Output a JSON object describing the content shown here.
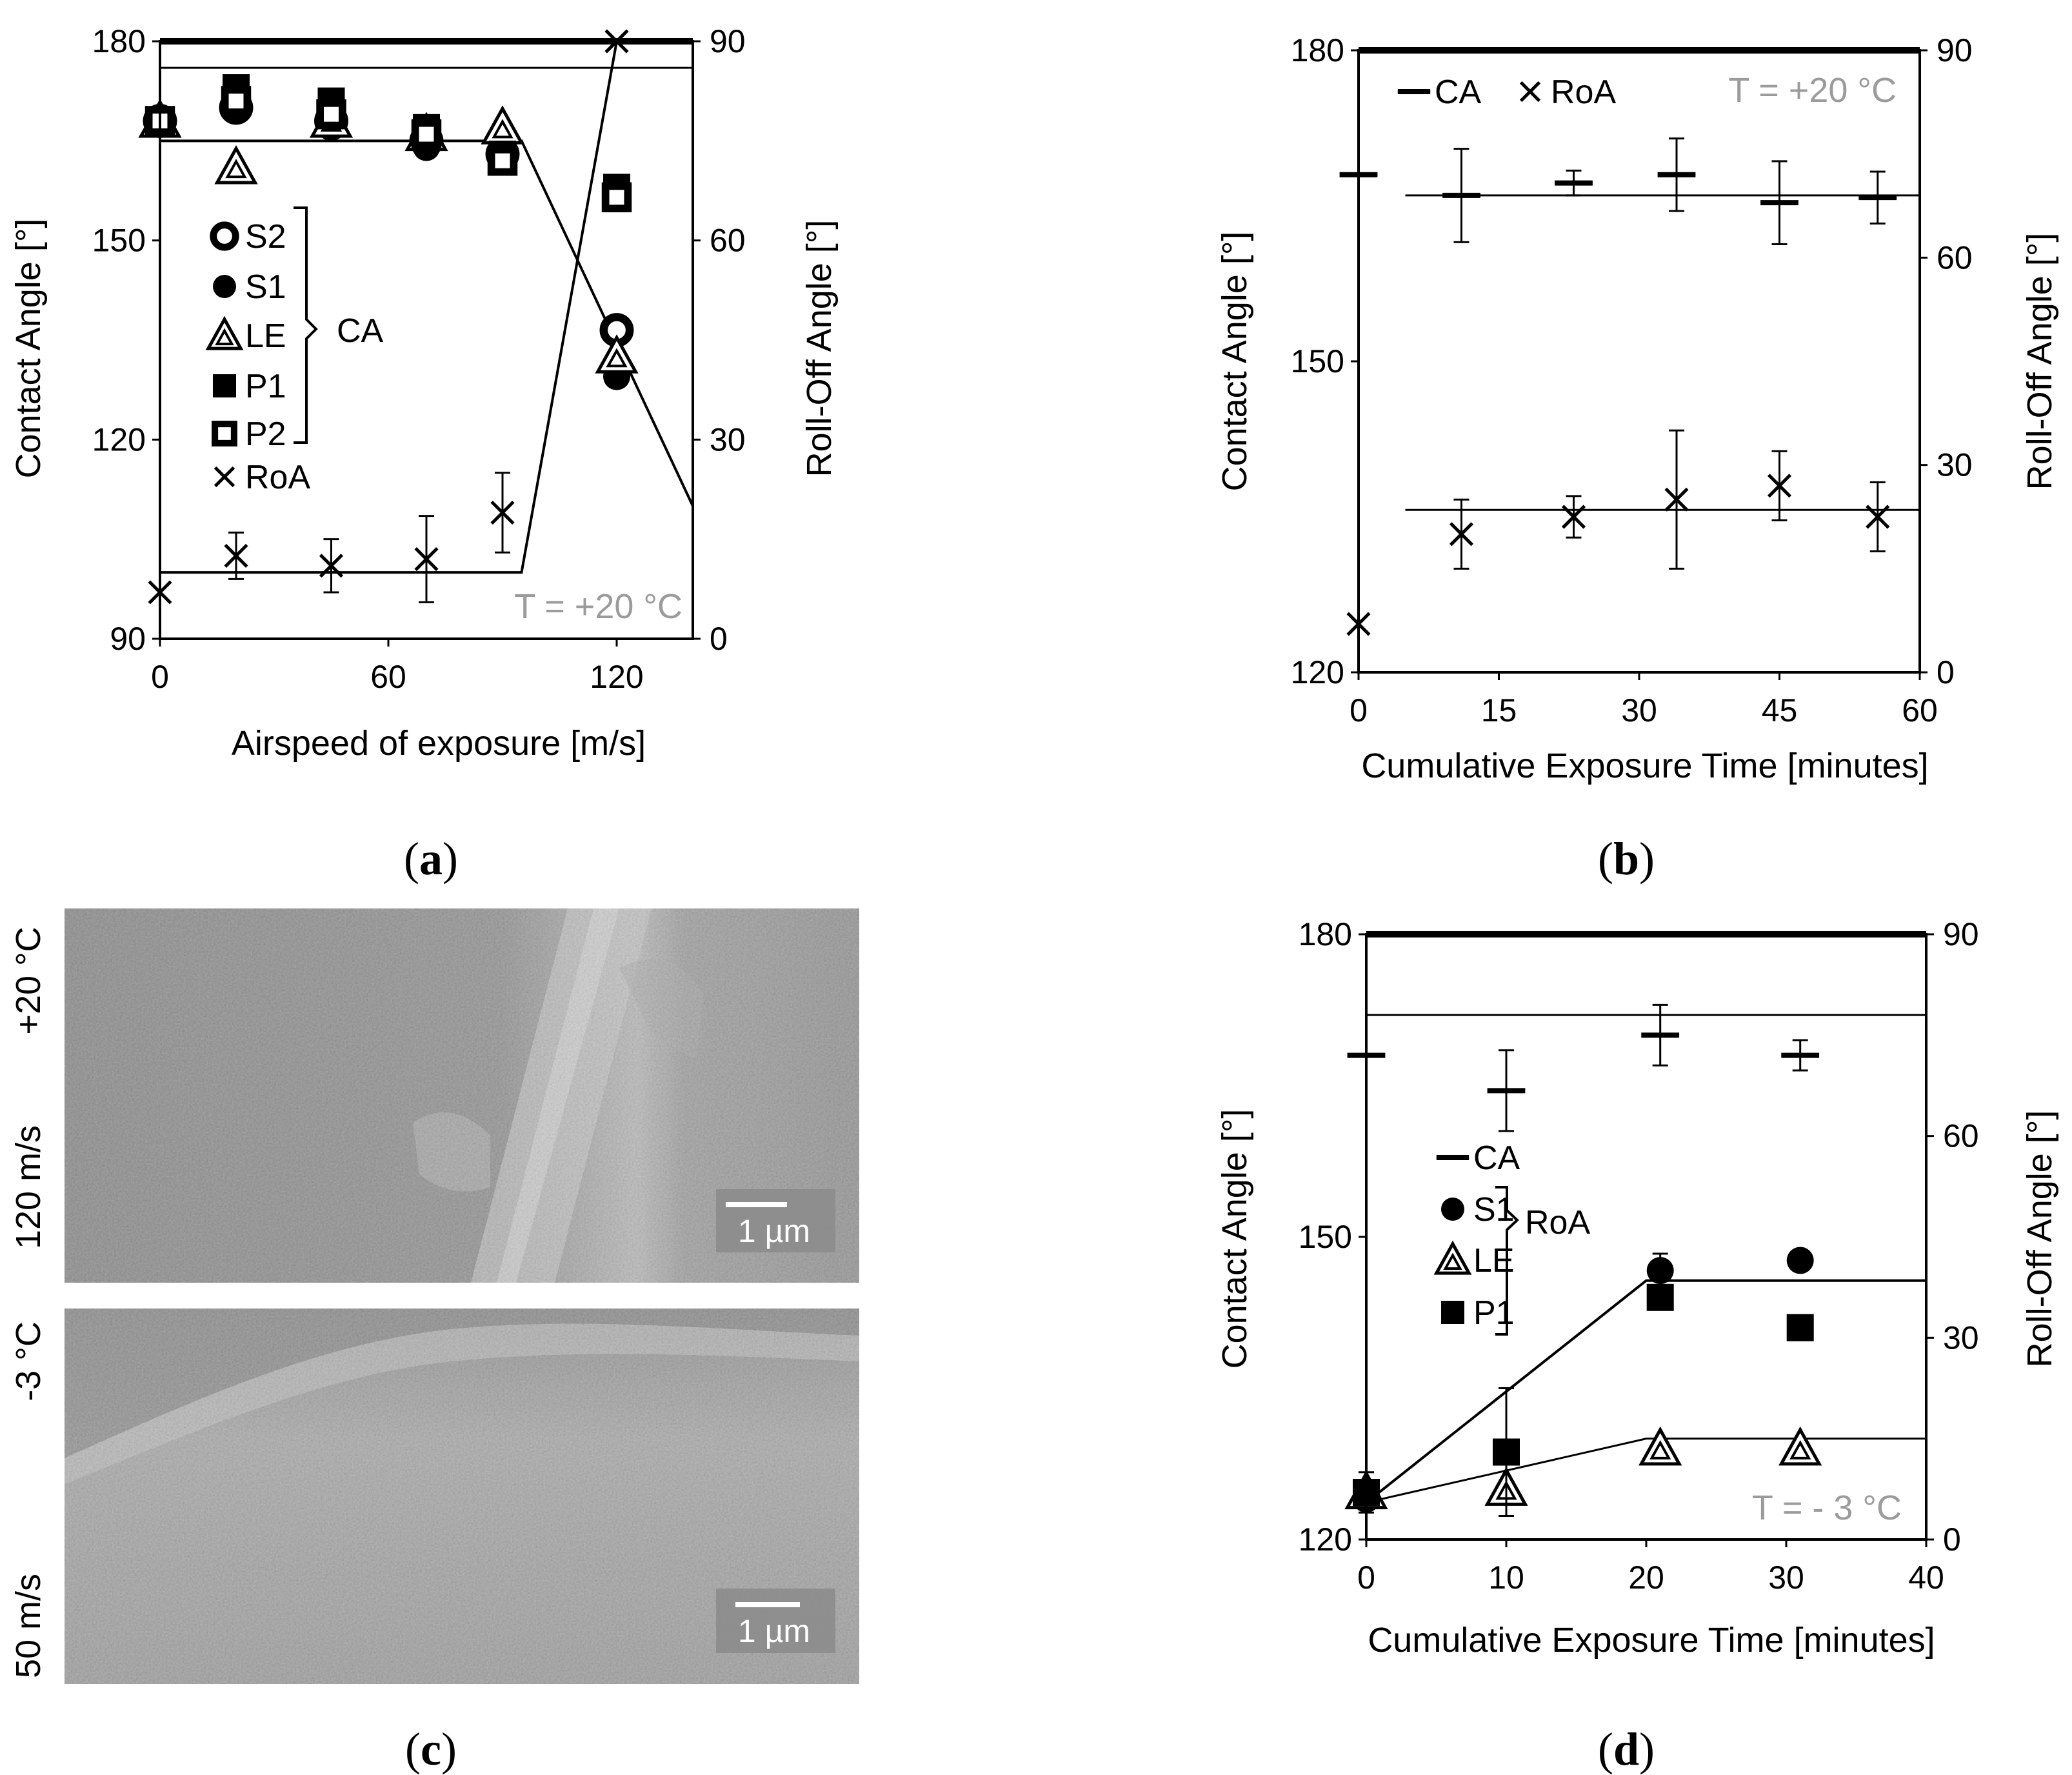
{
  "chart_data": [
    {
      "id": "a",
      "panel_label": "a",
      "type": "scatter",
      "xlabel": "Airspeed of exposure [m/s]",
      "ylabel": "Contact Angle [°]",
      "y2label": "Roll-Off Angle [°]",
      "xlim": [
        0,
        140
      ],
      "ylim": [
        90,
        180
      ],
      "y2lim": [
        0,
        90
      ],
      "xticks": [
        "0",
        "60",
        "120"
      ],
      "yticks": [
        "90",
        "120",
        "150",
        "180"
      ],
      "y2ticks": [
        "0",
        "30",
        "60",
        "90"
      ],
      "temperature": "T = +20 °C",
      "legend": {
        "entries": [
          {
            "label": "S2",
            "marker": "circle-open"
          },
          {
            "label": "S1",
            "marker": "circle-filled"
          },
          {
            "label": "LE",
            "marker": "triangle"
          },
          {
            "label": "P1",
            "marker": "square-filled"
          },
          {
            "label": "P2",
            "marker": "square-open"
          },
          {
            "label": "RoA",
            "marker": "x"
          }
        ],
        "group_label": "CA"
      },
      "series": [
        {
          "name": "S2",
          "axis": "left",
          "marker": "circle-open",
          "x": [
            0,
            20,
            45,
            70,
            90,
            120
          ],
          "y": [
            168,
            170,
            168,
            165,
            163,
            136.5
          ]
        },
        {
          "name": "S1",
          "axis": "left",
          "marker": "circle-filled",
          "x": [
            0,
            20,
            45,
            70,
            90,
            120
          ],
          "y": [
            168,
            170,
            167,
            164,
            162,
            129.5
          ]
        },
        {
          "name": "LE",
          "axis": "left",
          "marker": "triangle",
          "x": [
            0,
            20,
            45,
            70,
            90,
            120
          ],
          "y": [
            168,
            161,
            168,
            166,
            167,
            132.5
          ]
        },
        {
          "name": "P1",
          "axis": "left",
          "marker": "square-filled",
          "x": [
            0,
            20,
            45,
            70,
            90,
            120
          ],
          "y": [
            168,
            173,
            171,
            167,
            163,
            158
          ]
        },
        {
          "name": "P2",
          "axis": "left",
          "marker": "square-open",
          "x": [
            0,
            20,
            45,
            70,
            90,
            120
          ],
          "y": [
            168,
            171,
            169,
            166,
            162,
            156.5
          ]
        },
        {
          "name": "RoA",
          "axis": "right",
          "marker": "x",
          "x": [
            0,
            20,
            45,
            70,
            90,
            120
          ],
          "y": [
            7,
            12.5,
            11,
            12,
            19,
            90
          ],
          "err": [
            0,
            3.5,
            4,
            6.5,
            6,
            0
          ]
        }
      ],
      "fit_lines": [
        {
          "axis": "left",
          "width": 3,
          "points": [
            [
              0,
              176
            ],
            [
              140,
              176
            ]
          ]
        },
        {
          "axis": "left",
          "width": 4,
          "points": [
            [
              0,
              165
            ],
            [
              95,
              165
            ],
            [
              140,
              110
            ]
          ]
        },
        {
          "axis": "right",
          "width": 4,
          "points": [
            [
              0,
              10
            ],
            [
              95,
              10
            ],
            [
              120,
              90
            ]
          ]
        }
      ]
    },
    {
      "id": "b",
      "panel_label": "b",
      "type": "scatter",
      "xlabel": "Cumulative Exposure Time [minutes]",
      "ylabel": "Contact Angle [°]",
      "y2label": "Roll-Off Angle [°]",
      "xlim": [
        0,
        60
      ],
      "ylim": [
        120,
        180
      ],
      "y2lim": [
        0,
        90
      ],
      "xticks": [
        "0",
        "15",
        "30",
        "45",
        "60"
      ],
      "yticks": [
        "120",
        "150",
        "180"
      ],
      "y2ticks": [
        "0",
        "30",
        "60",
        "90"
      ],
      "temperature": "T = +20 °C",
      "legend": {
        "entries": [
          {
            "label": "CA",
            "marker": "dash"
          },
          {
            "label": "RoA",
            "marker": "x"
          }
        ]
      },
      "series": [
        {
          "name": "CA",
          "axis": "left",
          "marker": "dash",
          "x": [
            0,
            11,
            23,
            34,
            45,
            55.5
          ],
          "y": [
            168,
            166,
            167.2,
            168,
            165.3,
            165.8
          ],
          "err": [
            0,
            4.5,
            1.2,
            3.5,
            4,
            2.5
          ]
        },
        {
          "name": "RoA",
          "axis": "right",
          "marker": "x",
          "x": [
            0,
            11,
            23,
            34,
            45,
            55.5
          ],
          "y": [
            7,
            20,
            22.5,
            25,
            27,
            22.5
          ],
          "err": [
            0,
            5,
            3,
            10,
            5,
            5
          ]
        }
      ],
      "fit_lines": [
        {
          "axis": "left",
          "width": 3,
          "points": [
            [
              5,
              166
            ],
            [
              60,
              166
            ]
          ]
        },
        {
          "axis": "right",
          "width": 3,
          "points": [
            [
              5,
              23.5
            ],
            [
              60,
              23.5
            ]
          ]
        }
      ]
    },
    {
      "id": "d",
      "panel_label": "d",
      "type": "scatter",
      "xlabel": "Cumulative Exposure Time [minutes]",
      "ylabel": "Contact Angle [°]",
      "y2label": "Roll-Off Angle [°]",
      "xlim": [
        0,
        40
      ],
      "ylim": [
        120,
        180
      ],
      "y2lim": [
        0,
        90
      ],
      "xticks": [
        "0",
        "10",
        "20",
        "30",
        "40"
      ],
      "yticks": [
        "120",
        "150",
        "180"
      ],
      "y2ticks": [
        "0",
        "30",
        "60",
        "90"
      ],
      "temperature": "T = - 3 °C",
      "legend": {
        "entries": [
          {
            "label": "CA",
            "marker": "dash"
          },
          {
            "label": "S1",
            "marker": "circle-filled"
          },
          {
            "label": "LE",
            "marker": "triangle"
          },
          {
            "label": "P1",
            "marker": "square-filled"
          }
        ],
        "group_label": "RoA"
      },
      "series": [
        {
          "name": "CA",
          "axis": "left",
          "marker": "dash",
          "x": [
            0,
            10,
            21,
            31
          ],
          "y": [
            168,
            164.5,
            170,
            168
          ],
          "err": [
            0,
            4,
            3,
            1.5
          ]
        },
        {
          "name": "S1",
          "axis": "right",
          "marker": "circle-filled",
          "x": [
            0,
            21,
            31
          ],
          "y": [
            6,
            40,
            41.5
          ],
          "err": [
            0,
            2.5,
            1
          ]
        },
        {
          "name": "LE",
          "axis": "right",
          "marker": "triangle",
          "x": [
            0,
            10,
            21,
            31
          ],
          "y": [
            7,
            7.5,
            13.5,
            13.5
          ],
          "err": [
            0,
            4,
            0,
            0
          ]
        },
        {
          "name": "P1",
          "axis": "right",
          "marker": "square-filled",
          "x": [
            0,
            10,
            21,
            31
          ],
          "y": [
            7,
            13,
            36,
            31.5
          ],
          "err": [
            3,
            9.5,
            0,
            0
          ]
        }
      ],
      "fit_lines": [
        {
          "axis": "left",
          "width": 3,
          "points": [
            [
              0,
              172
            ],
            [
              40,
              172
            ]
          ]
        },
        {
          "axis": "right",
          "width": 4,
          "points": [
            [
              0,
              5.5
            ],
            [
              20,
              38.5
            ],
            [
              40,
              38.5
            ]
          ]
        },
        {
          "axis": "right",
          "width": 3,
          "points": [
            [
              0,
              5.5
            ],
            [
              20,
              15
            ],
            [
              40,
              15
            ]
          ]
        }
      ]
    }
  ],
  "sem_panel": {
    "panel_label": "c",
    "images": [
      {
        "label_speed": "120 m/s",
        "label_temp": "+20 °C",
        "scale": "1 µm"
      },
      {
        "label_speed": "50 m/s",
        "label_temp": "-3 °C",
        "scale": "1 µm"
      }
    ]
  }
}
